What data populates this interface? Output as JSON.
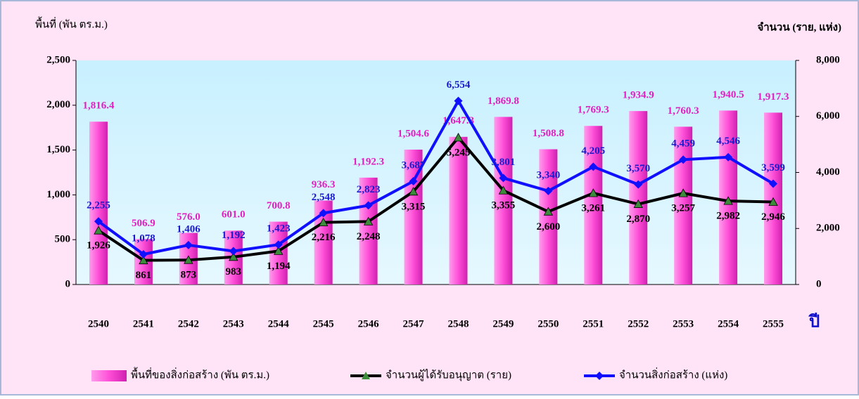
{
  "chart_data": {
    "type": "bar",
    "y_label": "พื้นที่ (พัน ตร.ม.)",
    "y2_label": "จำนวน (ราย, แห่ง)",
    "x_label": "ปี",
    "categories": [
      "2540",
      "2541",
      "2542",
      "2543",
      "2544",
      "2545",
      "2546",
      "2547",
      "2548",
      "2549",
      "2550",
      "2551",
      "2552",
      "2553",
      "2554",
      "2555"
    ],
    "series": [
      {
        "name": "พื้นที่ของสิ่งก่อสร้าง (พัน ตร.ม.)",
        "type": "bar",
        "color": "#ff4fd8",
        "label_color": "#e020c0",
        "values": [
          1816.4,
          506.9,
          576.0,
          601.0,
          700.8,
          936.3,
          1192.3,
          1504.6,
          1647.3,
          1869.8,
          1508.8,
          1769.3,
          1934.9,
          1760.3,
          1940.5,
          1917.3
        ],
        "value_labels": [
          "1,816.4",
          "506.9",
          "576.0",
          "601.0",
          "700.8",
          "936.3",
          "1,192.3",
          "1,504.6",
          "1,647.3",
          "1,869.8",
          "1,508.8",
          "1,769.3",
          "1,934.9",
          "1,760.3",
          "1,940.5",
          "1,917.3"
        ]
      },
      {
        "name": "จำนวนผู้ได้รับอนุญาต (ราย)",
        "type": "line",
        "axis": "y2",
        "color": "#000000",
        "marker_color": "#3c8c3c",
        "label_color": "#000000",
        "values": [
          1926,
          861,
          873,
          983,
          1194,
          2216,
          2248,
          3315,
          5245,
          3355,
          2600,
          3261,
          2870,
          3257,
          2982,
          2946
        ],
        "value_labels": [
          "1,926",
          "861",
          "873",
          "983",
          "1,194",
          "2,216",
          "2,248",
          "3,315",
          "5,245",
          "3,355",
          "2,600",
          "3,261",
          "2,870",
          "3,257",
          "2,982",
          "2,946"
        ]
      },
      {
        "name": "จำนวนสิ่งก่อสร้าง (แห่ง)",
        "type": "line",
        "axis": "y2",
        "color": "#1010ff",
        "marker_color": "#1010ff",
        "label_color": "#1a1acc",
        "values": [
          2255,
          1078,
          1406,
          1192,
          1423,
          2548,
          2823,
          3687,
          6554,
          3801,
          3340,
          4205,
          3570,
          4459,
          4546,
          3599
        ],
        "value_labels": [
          "2,255",
          "1,078",
          "1,406",
          "1,192",
          "1,423",
          "2,548",
          "2,823",
          "3,687",
          "6,554",
          "3,801",
          "3,340",
          "4,205",
          "3,570",
          "4,459",
          "4,546",
          "3,599"
        ]
      }
    ],
    "ylim": [
      0,
      2500
    ],
    "yticks": [
      0,
      500,
      {
        "value": 1000,
        "label": "1,000"
      },
      {
        "value": 1500,
        "label": "1,500"
      },
      {
        "value": 2000,
        "label": "2,000"
      },
      {
        "value": 2500,
        "label": "2,500"
      }
    ],
    "y2lim": [
      0,
      8000
    ],
    "y2ticks": [
      0,
      {
        "value": 2000,
        "label": "2,000"
      },
      {
        "value": 4000,
        "label": "4,000"
      },
      {
        "value": 6000,
        "label": "6,000"
      },
      {
        "value": 8000,
        "label": "8,000"
      }
    ]
  }
}
